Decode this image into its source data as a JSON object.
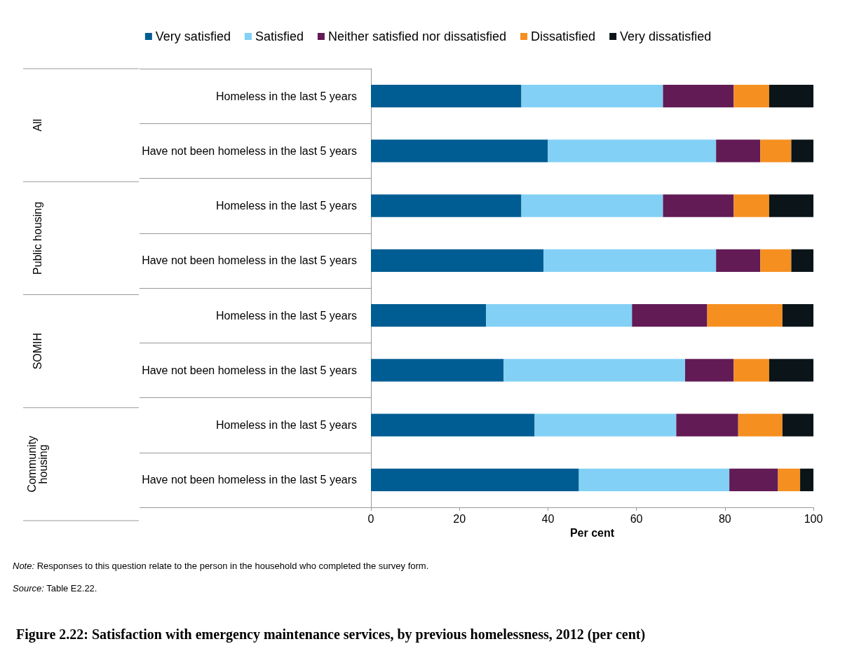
{
  "chart_data": {
    "type": "bar",
    "orientation": "horizontal",
    "stacked": true,
    "title": "Figure 2.22: Satisfaction with emergency maintenance services, by previous homelessness, 2012 (per cent)",
    "xlabel": "Per cent",
    "categories": [
      "Homeless in the last 5 years",
      "Have not been homeless in the last 5 years",
      "Homeless in the last 5 years",
      "Have not been homeless in the last 5 years",
      "Homeless in the last 5 years",
      "Have not been homeless in the last 5 years",
      "Homeless in the last 5 years",
      "Have not been homeless in the last 5 years"
    ],
    "series": [
      {
        "name": "Very satisfied",
        "color": "#005d93",
        "values": [
          34,
          40,
          34,
          39,
          26,
          30,
          37,
          47
        ]
      },
      {
        "name": "Satisfied",
        "color": "#82d0f5",
        "values": [
          32,
          38,
          32,
          39,
          33,
          41,
          32,
          34
        ]
      },
      {
        "name": "Neither satisfied nor dissatisfied",
        "color": "#621b55",
        "values": [
          16,
          10,
          16,
          10,
          17,
          11,
          14,
          11
        ]
      },
      {
        "name": "Dissatisfied",
        "color": "#f58f20",
        "values": [
          8,
          7,
          8,
          7,
          17,
          8,
          10,
          5
        ]
      },
      {
        "name": "Very dissatisfied",
        "color": "#0a1419",
        "values": [
          10,
          5,
          10,
          5,
          7,
          10,
          7,
          3
        ]
      }
    ],
    "xlim": [
      0,
      100
    ],
    "xticks": [
      0,
      20,
      40,
      60,
      80,
      100
    ],
    "grid": false,
    "legend": "top",
    "annotations": [
      "All",
      "Public housing",
      "SOMIH",
      "Community housing",
      "Note: Responses to this question relate to the person in the household who completed the survey form.",
      "Source: Table E2.22."
    ]
  }
}
